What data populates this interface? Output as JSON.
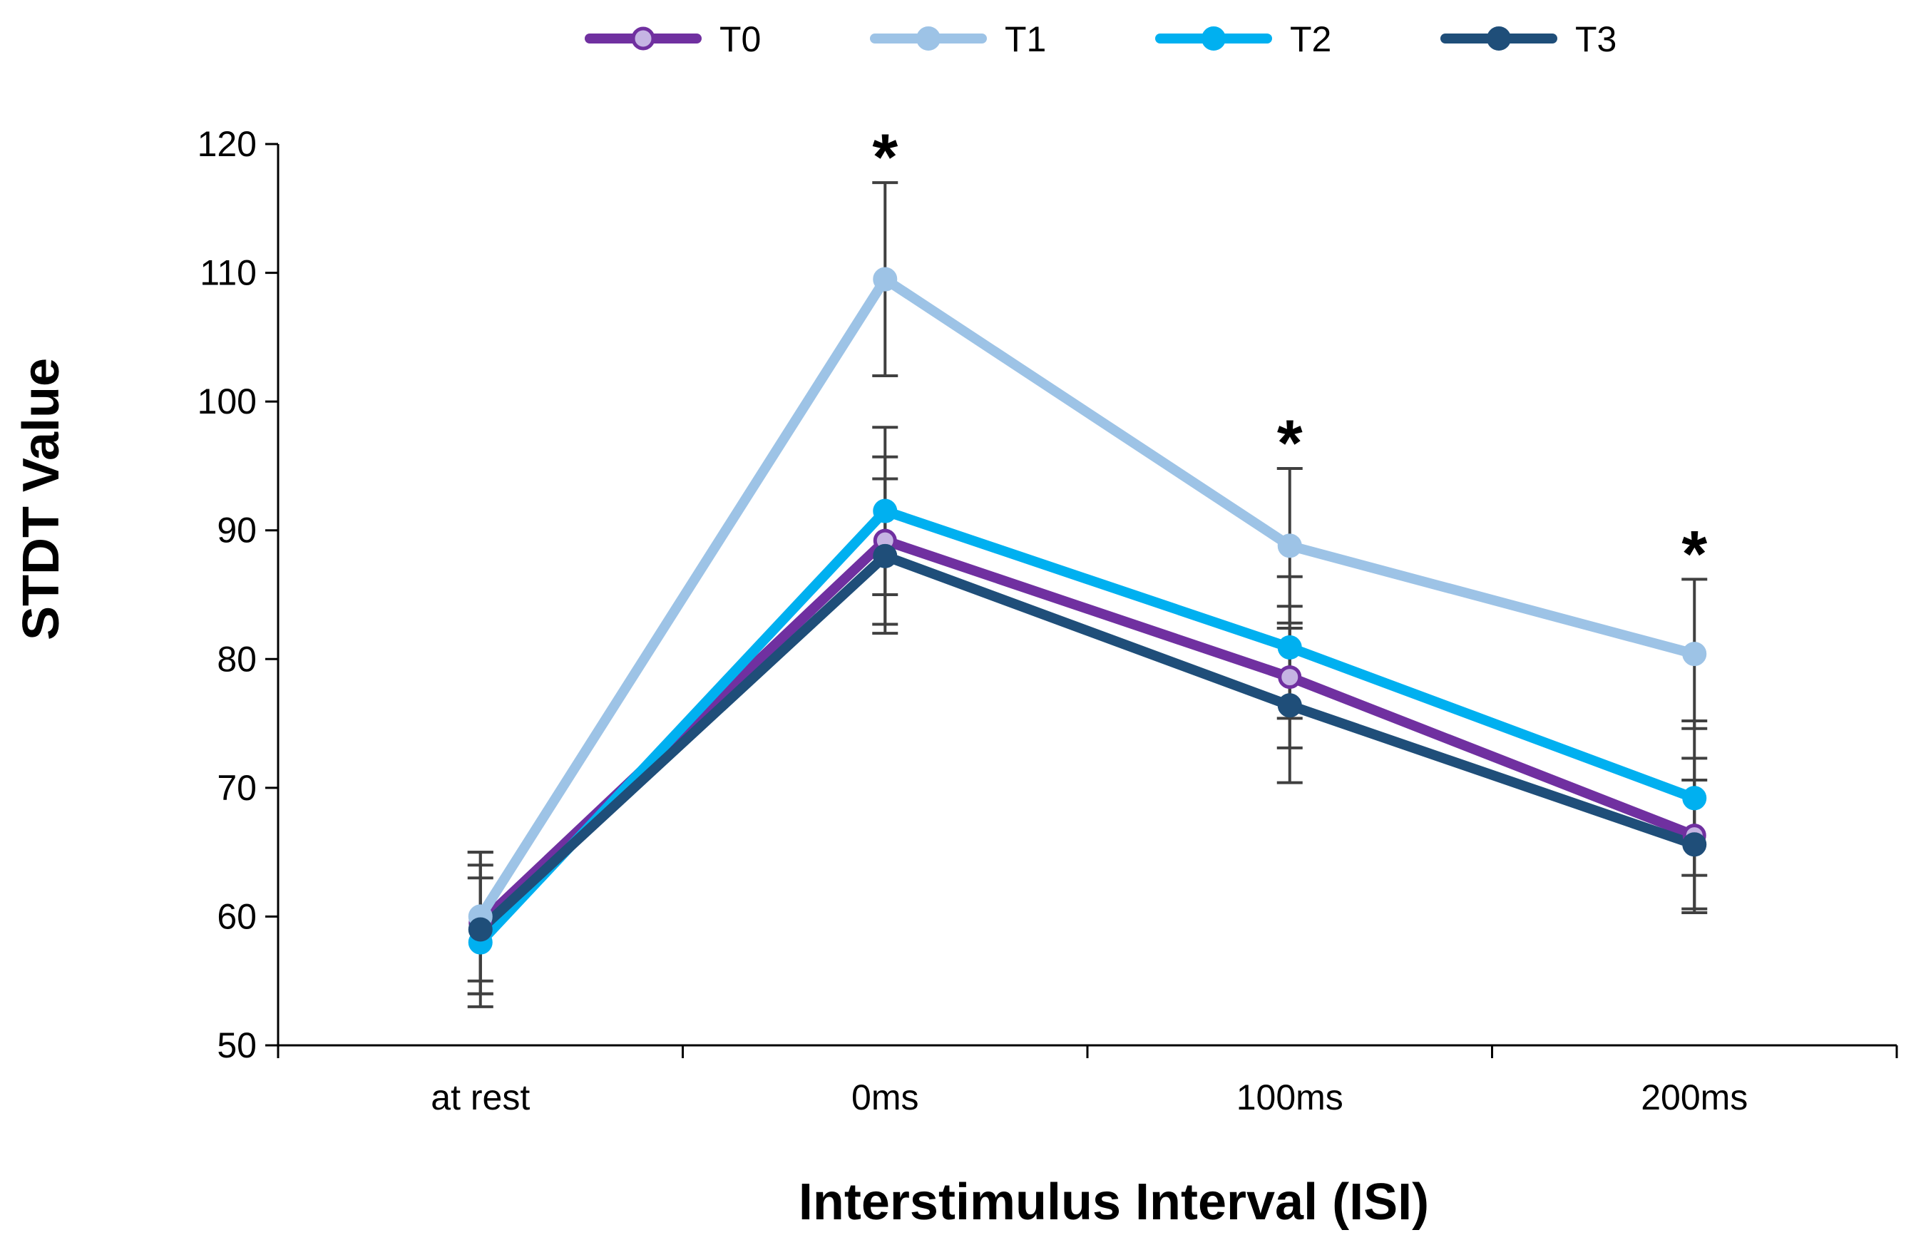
{
  "chart_data": {
    "type": "line",
    "title": "",
    "xlabel": "Interstimulus Interval (ISI)",
    "ylabel": "STDT Value",
    "categories": [
      "at rest",
      "0ms",
      "100ms",
      "200ms"
    ],
    "ylim": [
      50,
      120
    ],
    "yticks": [
      50,
      60,
      70,
      80,
      90,
      100,
      110,
      120
    ],
    "grid": false,
    "legend_position": "top",
    "series": [
      {
        "name": "T0",
        "color": "#7030A0",
        "marker": "hollow-circle",
        "marker_fill": "#C5B4E3",
        "values": [
          59.5,
          89.2,
          78.6,
          66.3
        ],
        "errors": [
          5.5,
          6.5,
          5.5,
          6.0
        ]
      },
      {
        "name": "T1",
        "color": "#9DC3E6",
        "marker": "circle",
        "marker_fill": "#9DC3E6",
        "values": [
          60.0,
          109.5,
          88.8,
          80.4
        ],
        "errors": [
          5.0,
          7.5,
          6.0,
          5.8
        ]
      },
      {
        "name": "T2",
        "color": "#00B0F0",
        "marker": "circle",
        "marker_fill": "#00B0F0",
        "values": [
          58.0,
          91.5,
          80.9,
          69.2
        ],
        "errors": [
          5.0,
          6.5,
          5.5,
          6.0
        ]
      },
      {
        "name": "T3",
        "color": "#1F4E79",
        "marker": "circle",
        "marker_fill": "#1F4E79",
        "values": [
          59.0,
          88.0,
          76.4,
          65.6
        ],
        "errors": [
          5.0,
          6.0,
          6.0,
          5.0
        ]
      }
    ],
    "annotations": [
      {
        "category": "0ms",
        "text": "*"
      },
      {
        "category": "100ms",
        "text": "*"
      },
      {
        "category": "200ms",
        "text": "*"
      }
    ],
    "axis_color": "#000000",
    "error_bar_color": "#404040"
  }
}
